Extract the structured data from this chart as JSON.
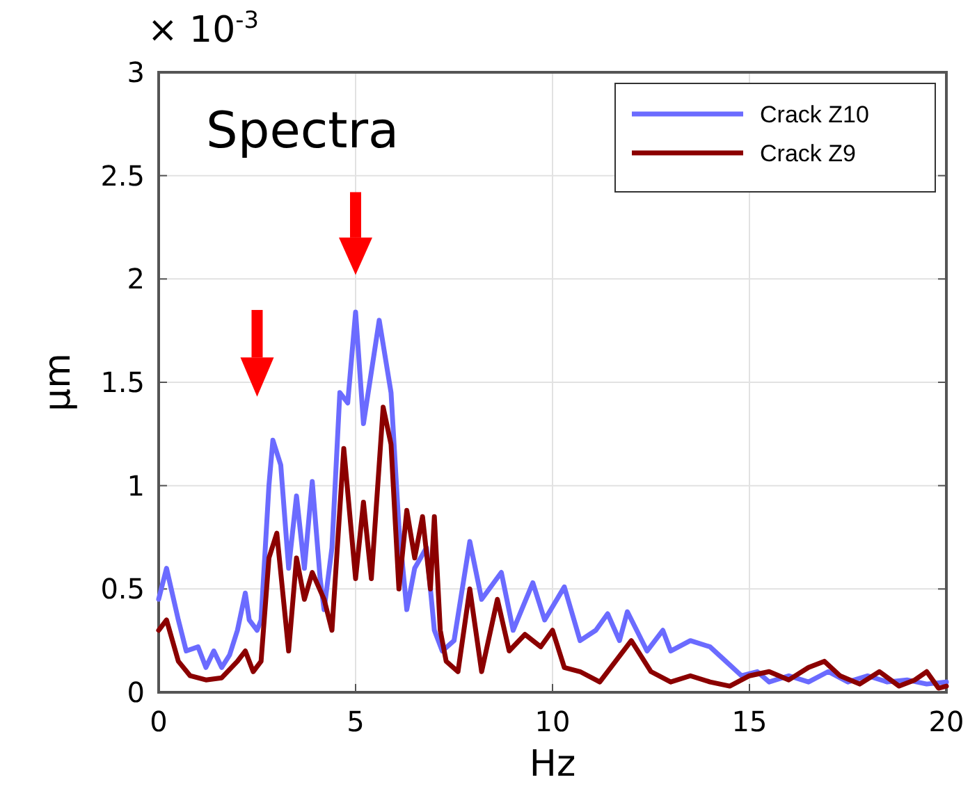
{
  "chart_data": {
    "type": "line",
    "title": "Spectra",
    "xlabel": "Hz",
    "ylabel": "µm",
    "annotations": [
      "× 10$^{-3}$"
    ],
    "xlim": [
      0,
      20
    ],
    "xticks": [
      0,
      5,
      10,
      15,
      20
    ],
    "ylim": [
      0,
      3
    ],
    "yticks": [
      0,
      0.5,
      1,
      1.5,
      2,
      2.5,
      3
    ],
    "grid": true,
    "legend": "top right",
    "line_style": "solid",
    "marker": "none",
    "series": [
      {
        "name": "Crack Z10",
        "color": "#6b6bff",
        "x": [
          0,
          0.2,
          0.5,
          0.7,
          1,
          1.2,
          1.4,
          1.6,
          1.8,
          2,
          2.2,
          2.3,
          2.5,
          2.6,
          2.8,
          2.9,
          3.1,
          3.3,
          3.5,
          3.7,
          3.9,
          4.1,
          4.2,
          4.4,
          4.6,
          4.8,
          5,
          5.2,
          5.4,
          5.6,
          5.9,
          6.1,
          6.3,
          6.5,
          6.8,
          7,
          7.2,
          7.5,
          7.9,
          8.2,
          8.7,
          9,
          9.5,
          9.8,
          10.3,
          10.7,
          11.1,
          11.4,
          11.7,
          11.9,
          12.4,
          12.8,
          13,
          13.5,
          14,
          14.4,
          14.8,
          15.2,
          15.5,
          16,
          16.5,
          17,
          17.5,
          18,
          18.5,
          19,
          19.5,
          20
        ],
        "values": [
          0.45,
          0.6,
          0.35,
          0.2,
          0.22,
          0.12,
          0.2,
          0.12,
          0.18,
          0.3,
          0.48,
          0.35,
          0.3,
          0.35,
          1,
          1.22,
          1.1,
          0.6,
          0.95,
          0.6,
          1.02,
          0.55,
          0.4,
          0.7,
          1.45,
          1.4,
          1.84,
          1.3,
          1.55,
          1.8,
          1.45,
          0.8,
          0.4,
          0.6,
          0.7,
          0.3,
          0.2,
          0.25,
          0.73,
          0.45,
          0.58,
          0.3,
          0.53,
          0.35,
          0.51,
          0.25,
          0.3,
          0.38,
          0.25,
          0.39,
          0.2,
          0.3,
          0.2,
          0.25,
          0.22,
          0.15,
          0.08,
          0.1,
          0.05,
          0.08,
          0.05,
          0.1,
          0.05,
          0.08,
          0.05,
          0.06,
          0.04,
          0.05
        ]
      },
      {
        "name": "Crack Z9",
        "color": "#8b0000",
        "x": [
          0,
          0.2,
          0.5,
          0.8,
          1.2,
          1.6,
          2,
          2.2,
          2.4,
          2.6,
          2.8,
          3,
          3.3,
          3.5,
          3.7,
          3.9,
          4.2,
          4.4,
          4.7,
          5,
          5.2,
          5.4,
          5.7,
          5.9,
          6.1,
          6.3,
          6.5,
          6.7,
          6.9,
          7,
          7.15,
          7.3,
          7.6,
          7.9,
          8.2,
          8.6,
          8.9,
          9.3,
          9.7,
          10,
          10.3,
          10.7,
          11.2,
          11.6,
          12,
          12.5,
          13,
          13.5,
          14,
          14.5,
          15,
          15.5,
          16,
          16.5,
          16.9,
          17.3,
          17.8,
          18.3,
          18.8,
          19.2,
          19.5,
          19.8,
          20
        ],
        "values": [
          0.3,
          0.35,
          0.15,
          0.08,
          0.06,
          0.07,
          0.15,
          0.2,
          0.1,
          0.15,
          0.65,
          0.77,
          0.2,
          0.65,
          0.45,
          0.58,
          0.45,
          0.3,
          1.18,
          0.55,
          0.92,
          0.55,
          1.38,
          1.2,
          0.5,
          0.88,
          0.65,
          0.85,
          0.5,
          0.85,
          0.3,
          0.15,
          0.1,
          0.5,
          0.1,
          0.45,
          0.2,
          0.28,
          0.22,
          0.3,
          0.12,
          0.1,
          0.05,
          0.15,
          0.25,
          0.1,
          0.05,
          0.08,
          0.05,
          0.03,
          0.08,
          0.1,
          0.06,
          0.12,
          0.15,
          0.08,
          0.04,
          0.1,
          0.03,
          0.06,
          0.1,
          0.02,
          0.03
        ]
      }
    ]
  }
}
